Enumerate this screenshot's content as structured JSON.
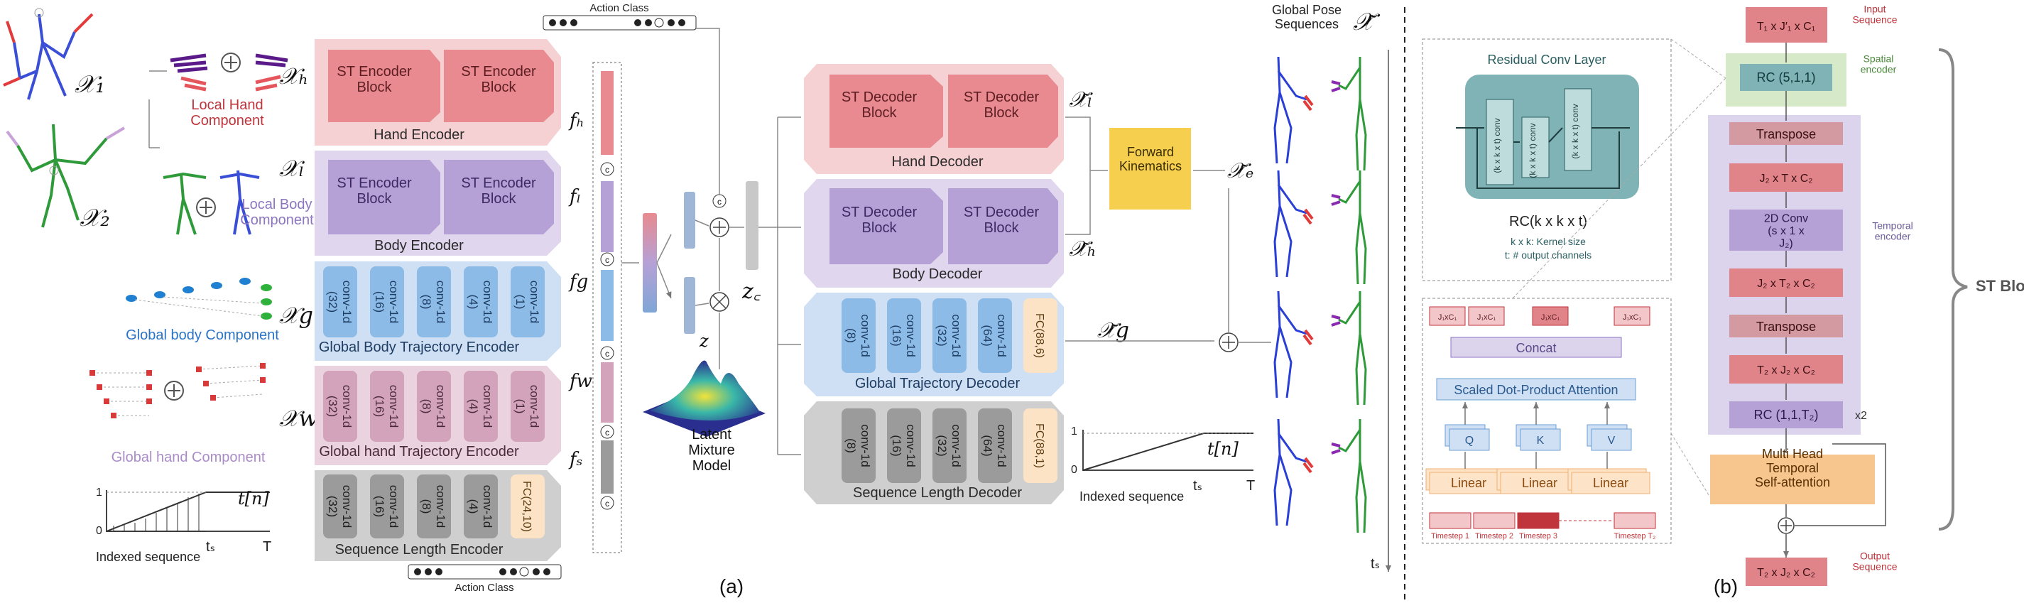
{
  "left_panel": {
    "top_action_label": "Action Class",
    "bottom_action_label": "Action Class",
    "x1": "𝒳₁",
    "x2": "𝒳₂",
    "local_hand": "Local Hand Component",
    "local_body": "Local Body Component",
    "global_body": "Global body Component",
    "global_hand": "Global hand Component",
    "indexed_sequence": "Indexed sequence",
    "ts": "tₛ",
    "T": "T",
    "t_n": "t[n]",
    "axis_one": "1",
    "axis_zero": "0",
    "xh": "𝒳ₕ",
    "xl": "𝒳ₗ",
    "xg": "𝒳g",
    "xw": "𝒳w",
    "fh": "fₕ",
    "fl": "fₗ",
    "fg": "fg",
    "fw": "fw",
    "fs": "fₛ",
    "z": "z",
    "zc": "z꜀",
    "latent_model": "Latent Mixture Model",
    "figure_label": "(a)"
  },
  "encoders": {
    "hand": {
      "title": "Hand Encoder",
      "block1": "ST Encoder Block",
      "block2": "ST Encoder Block"
    },
    "body": {
      "title": "Body Encoder",
      "block1": "ST Encoder Block",
      "block2": "ST Encoder Block"
    },
    "global_body": {
      "title": "Global Body Trajectory Encoder",
      "convs": [
        "conv-1d (32)",
        "conv-1d (16)",
        "conv-1d (8)",
        "conv-1d (4)",
        "conv-1d (1)"
      ]
    },
    "global_hand": {
      "title": "Global hand Trajectory Encoder",
      "convs": [
        "conv-1d (32)",
        "conv-1d (16)",
        "conv-1d (8)",
        "conv-1d (4)",
        "conv-1d (1)"
      ]
    },
    "seq_len": {
      "title": "Sequence Length Encoder",
      "convs": [
        "conv-1d (32)",
        "conv-1d (16)",
        "conv-1d (8)",
        "conv-1d (4)"
      ],
      "fc": "FC(24,10)"
    }
  },
  "decoders": {
    "hand": {
      "title": "Hand Decoder",
      "block1": "ST Decoder Block",
      "block2": "ST Decoder Block"
    },
    "body": {
      "title": "Body Decoder",
      "block1": "ST Decoder Block",
      "block2": "ST Decoder Block"
    },
    "trajectory": {
      "title": "Global Trajectory Decoder",
      "convs": [
        "conv-1d (8)",
        "conv-1d (16)",
        "conv-1d (32)",
        "conv-1d (64)"
      ],
      "fc": "FC(88,6)"
    },
    "seq_len": {
      "title": "Sequence Length Decoder",
      "convs": [
        "conv-1d (8)",
        "conv-1d (16)",
        "conv-1d (32)",
        "conv-1d (64)"
      ],
      "fc": "FC(88,1)"
    }
  },
  "middle": {
    "forward_kinematics": "Forward Kinematics",
    "xl_tilde": "𝒳̃ₗ",
    "xh_tilde": "𝒳̃ₕ",
    "xg_tilde": "𝒳̃g",
    "xe_tilde": "𝒳̃ₑ",
    "x_tilde": "𝒳̃",
    "global_pose": "Global Pose Sequences",
    "indexed_sequence": "Indexed sequence",
    "t_n": "t[n]",
    "ts": "tₛ",
    "T": "T",
    "axis_one": "1",
    "axis_zero": "0",
    "ts_time": "tₛ"
  },
  "right_panel": {
    "residual_title": "Residual Conv Layer",
    "conv": "(k x k x t) conv",
    "rc_label": "RC(k x k x t)",
    "kernel_note": "k x k: Kernel size",
    "channels_note": "t: # output channels",
    "concat": "Concat",
    "attention": "Scaled Dot-Product Attention",
    "q": "Q",
    "k": "K",
    "v": "V",
    "linear": "Linear",
    "head_tokens": [
      "J₁xC₁",
      "J₁xC₁",
      "J₁xC₁",
      "J₁xC₁"
    ],
    "timesteps": [
      "Timestep 1",
      "Timestep 2",
      "Timestep 3",
      "Timestep T₂"
    ],
    "input": "T₁ x J′₁ x C₁",
    "input_label": "Input Sequence",
    "rc_first": "RC (5,1,1)",
    "spatial_label": "Spatial encoder",
    "transpose1": "Transpose",
    "j2tc2": "J₂ x T x C₂",
    "conv2d": "2D Conv (s x 1 x J₂)",
    "j2t2c2": "J₂ x T₂ x C₂",
    "transpose2": "Transpose",
    "t2j2c2": "T₂ x J₂ x C₂",
    "rc_last": "RC (1,1,T₂)",
    "x2": "x2",
    "temporal_label": "Temporal encoder",
    "mhsa": "Multi Head Temporal Self-attention",
    "output": "T₂ x J₂ x C₂",
    "output_label": "Output Sequence",
    "st_block": "ST Block",
    "figure_label": "(b)"
  },
  "colors": {
    "hand": "#f6d1d3",
    "hand_block": "#e88a8f",
    "body": "#e0d6ee",
    "body_block": "#b6a1d6",
    "traj": "#cfe0f4",
    "traj_block": "#8bbbe6",
    "ghand": "#ead3de",
    "ghand_block": "#d3a2bb",
    "seq": "#cfcfcf",
    "seq_block": "#9b9b9b",
    "fc": "#fce3c6",
    "fk": "#f6cf4f",
    "teal": "#7fb3b6",
    "rc_green": "#d6e9c8",
    "temporal": "#dcd4ec",
    "red_box": "#e0848a",
    "mhsa": "#f7c58e"
  }
}
